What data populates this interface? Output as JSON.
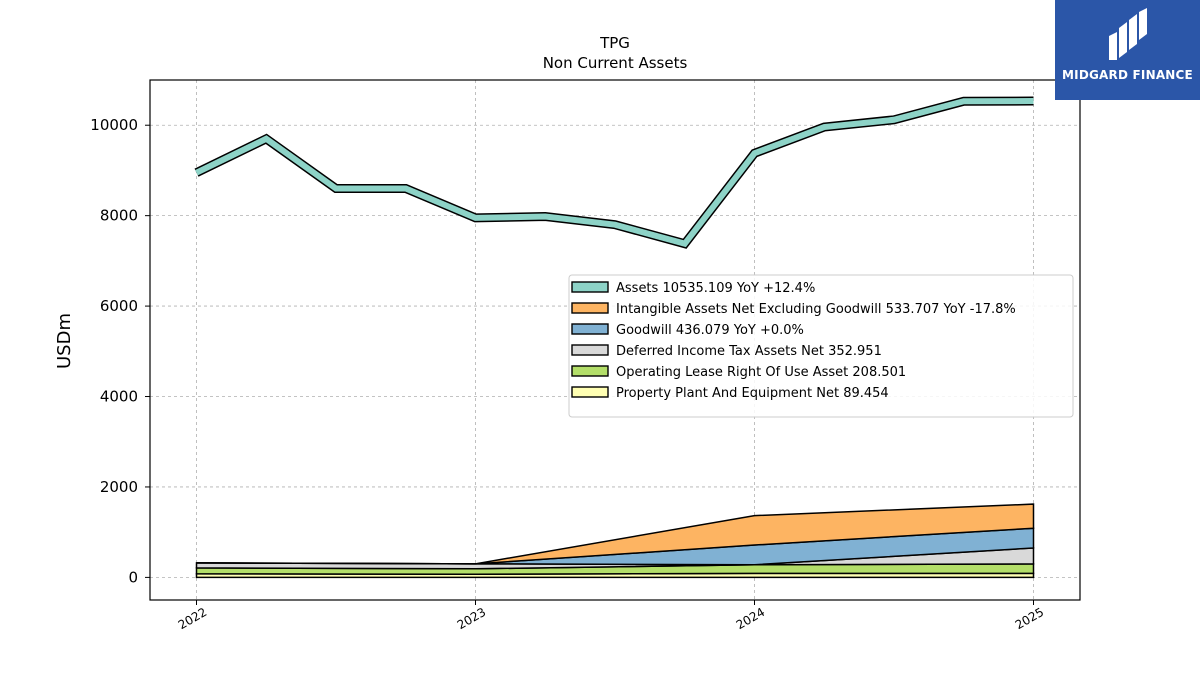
{
  "brand": {
    "name": "MIDGARD FINANCE",
    "color": "#2b56a8"
  },
  "chart_data": {
    "type": "area",
    "title": "TPG",
    "subtitle": "Non Current  Assets",
    "xlabel": "",
    "ylabel": "USDm",
    "x_ticks": [
      "2022",
      "2023",
      "2024",
      "2025"
    ],
    "y_ticks": [
      0,
      2000,
      4000,
      6000,
      8000,
      10000
    ],
    "ylim": [
      -500,
      11000
    ],
    "xlim": [
      "2021-11",
      "2025-03"
    ],
    "grid": true,
    "legend_position": "center-right",
    "x": [
      "2022-01",
      "2022-04",
      "2022-07",
      "2022-10",
      "2023-01",
      "2023-04",
      "2023-07",
      "2023-10",
      "2024-01",
      "2024-04",
      "2024-07",
      "2024-10",
      "2025-01"
    ],
    "series": [
      {
        "name": "Assets",
        "legend": "Assets  10535.109 YoY +12.4%",
        "color": "#8dd3c7",
        "values": [
          8950,
          9700,
          8600,
          8600,
          7950,
          7980,
          7800,
          7380,
          9380,
          9960,
          10120,
          10530,
          10535
        ]
      },
      {
        "name": "Intangible Assets Net Excluding Goodwill",
        "legend": "Intangible Assets Net Excluding Goodwill  533.707 YoY -17.8%",
        "color": "#fdb462",
        "values": [
          null,
          null,
          null,
          null,
          0,
          null,
          null,
          null,
          650,
          null,
          null,
          null,
          534
        ]
      },
      {
        "name": "Goodwill",
        "legend": "Goodwill  436.079 YoY +0.0%",
        "color": "#80b1d3",
        "values": [
          null,
          null,
          null,
          null,
          0,
          null,
          null,
          null,
          436,
          null,
          null,
          null,
          436
        ]
      },
      {
        "name": "Deferred Income Tax Assets Net",
        "legend": "Deferred Income Tax Assets Net  352.951",
        "color": "#d9d9d9",
        "values": [
          110,
          null,
          null,
          null,
          110,
          null,
          null,
          null,
          0,
          null,
          null,
          null,
          353
        ]
      },
      {
        "name": "Operating Lease Right Of Use Asset",
        "legend": "Operating Lease Right Of Use Asset  208.501",
        "color": "#b3de69",
        "values": [
          130,
          null,
          null,
          null,
          120,
          null,
          null,
          null,
          190,
          null,
          null,
          null,
          209
        ]
      },
      {
        "name": "Property Plant And Equipment Net",
        "legend": "Property Plant And Equipment Net  89.454",
        "color": "#ffffb3",
        "values": [
          80,
          null,
          null,
          null,
          70,
          null,
          null,
          null,
          90,
          null,
          null,
          null,
          89
        ]
      }
    ]
  }
}
